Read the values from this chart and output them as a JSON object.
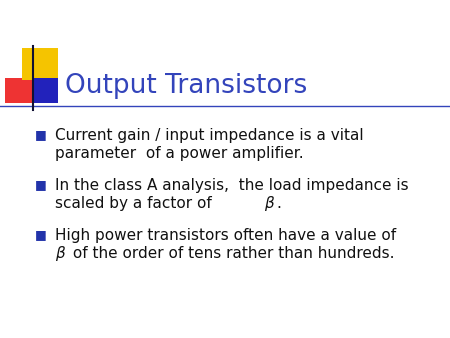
{
  "title": "Output Transistors",
  "title_color": "#3344BB",
  "background_color": "#FFFFFF",
  "bullet_color": "#2233AA",
  "text_color": "#111111",
  "bullet_char": "■",
  "bullet_lines": [
    [
      "Current gain / input impedance is a vital",
      "parameter  of a power amplifier."
    ],
    [
      "In the class A analysis,  the load impedance is",
      "scaled by a factor of ",
      "β",
      "."
    ],
    [
      "High power transistors often have a value of",
      "β",
      " of the order of tens rather than hundreds."
    ]
  ],
  "bullet_line2_italic": [
    false,
    false,
    true,
    false
  ],
  "decorator_colors": {
    "yellow": "#F5C400",
    "red": "#EE3333",
    "blue_dark": "#2222BB",
    "blue_light": "#6699FF"
  },
  "title_line_color": "#3344BB",
  "figsize": [
    4.5,
    3.38
  ],
  "dpi": 100
}
